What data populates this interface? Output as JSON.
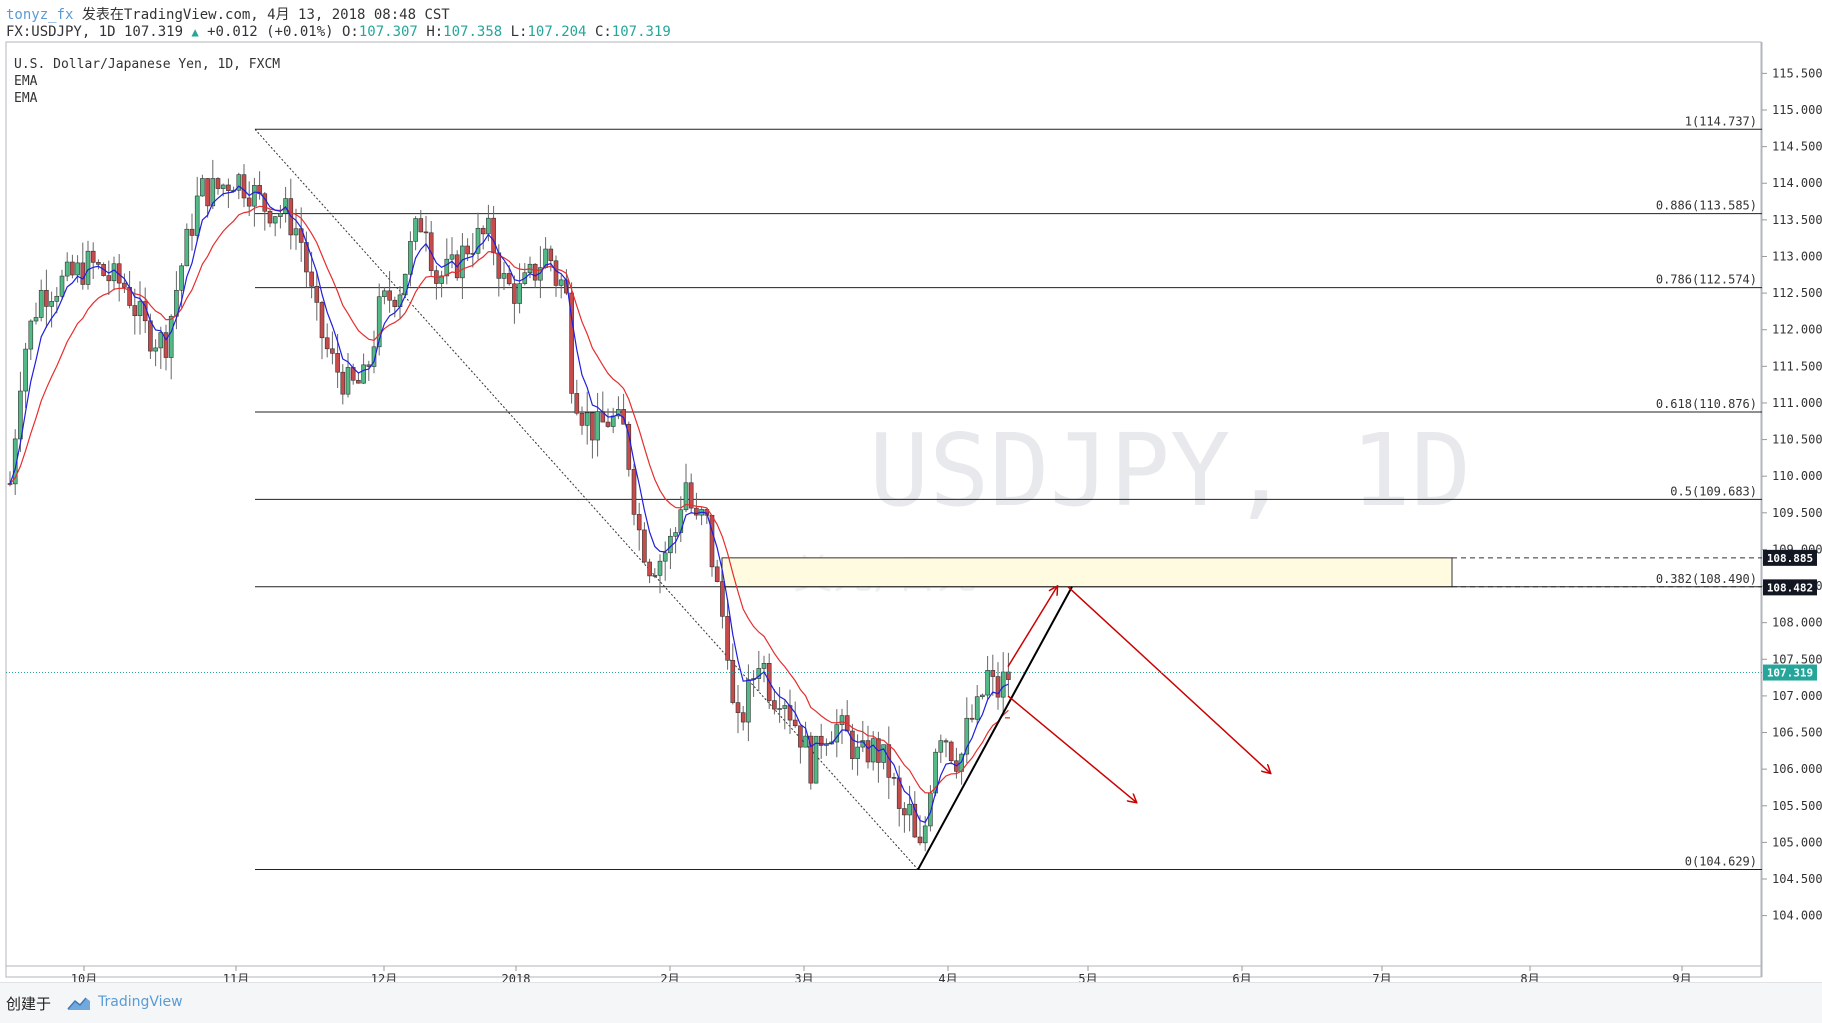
{
  "header": {
    "author": "tonyz_fx",
    "published": "发表在TradingView.com, 4月 13, 2018 08:48 CST",
    "symbol": "FX:USDJPY, 1D 107.319",
    "change": "+0.012 (+0.01%)",
    "o_label": "O:",
    "o_value": "107.307",
    "h_label": "H:",
    "h_value": "107.358",
    "l_label": "L:",
    "l_value": "107.204",
    "c_label": "C:",
    "c_value": "107.319"
  },
  "legend": {
    "title": "U.S. Dollar/Japanese Yen, 1D, FXCM",
    "ind1": "EMA",
    "ind2": "EMA"
  },
  "watermark": {
    "main": "USDJPY, 1D",
    "sub": "美元/日元"
  },
  "footer": {
    "created_by": "创建于",
    "brand": "TradingView"
  },
  "colors": {
    "up": "#26a69a",
    "down": "#ef5350",
    "candle_up": "#53b987",
    "candle_down": "#c74b4b",
    "ema_fast": "#1f1fdd",
    "ema_slow": "#e62e2e",
    "arrow": "#cc0000",
    "box_fill": "#fffbe0",
    "price_tag": "#26a69a"
  },
  "chart_data": {
    "type": "candlestick",
    "title": "U.S. Dollar/Japanese Yen, 1D, FXCM",
    "y_range": [
      103.6,
      115.9
    ],
    "y_ticks": [
      "104.000",
      "104.500",
      "105.000",
      "105.500",
      "106.000",
      "106.500",
      "107.000",
      "107.500",
      "108.000",
      "108.500",
      "109.000",
      "109.500",
      "110.000",
      "110.500",
      "111.000",
      "111.500",
      "112.000",
      "112.500",
      "113.000",
      "113.500",
      "114.000",
      "114.500",
      "115.000",
      "115.500"
    ],
    "x_ticks": [
      "10月",
      "11月",
      "12月",
      "2018",
      "2月",
      "3月",
      "4月",
      "5月",
      "6月",
      "7月",
      "8月",
      "9月"
    ],
    "current_price": "107.319",
    "fib_levels": [
      {
        "label": "1(114.737)",
        "value": 114.737
      },
      {
        "label": "0.886(113.585)",
        "value": 113.585
      },
      {
        "label": "0.786(112.574)",
        "value": 112.574
      },
      {
        "label": "0.618(110.876)",
        "value": 110.876
      },
      {
        "label": "0.5(109.683)",
        "value": 109.683
      },
      {
        "label": "0.382(108.490)",
        "value": 108.49
      },
      {
        "label": "0(104.629)",
        "value": 104.629
      }
    ],
    "price_tags": [
      {
        "label": "108.885",
        "value": 108.885,
        "style": "dark"
      },
      {
        "label": "108.482",
        "value": 108.482,
        "style": "dark"
      },
      {
        "label": "107.319",
        "value": 107.319,
        "style": "green"
      }
    ],
    "zone": {
      "from_month": "2月",
      "to_month": "7月",
      "low": 108.49,
      "high": 108.885
    },
    "series": [
      {
        "name": "EMA",
        "kind": "fast"
      },
      {
        "name": "EMA",
        "kind": "slow"
      }
    ]
  }
}
